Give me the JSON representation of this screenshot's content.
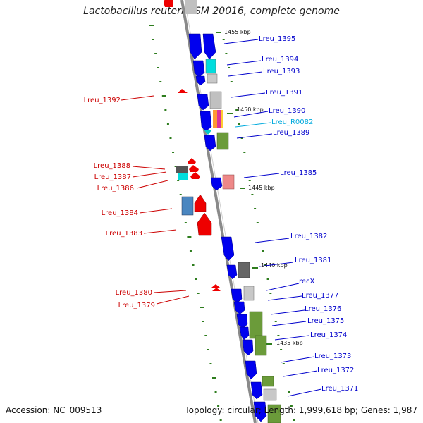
{
  "title": "Lactobacillus reuteri DSM 20016, complete genome",
  "footer": {
    "accession": "Accession: NC_009513",
    "summary": "Topology: circular; Length: 1,999,618 bp; Genes: 1,987"
  },
  "colors": {
    "forward_cds": "#0000ee",
    "reverse_cds": "#ee0000",
    "backbone": "#8a8a8a",
    "tick": "#2e7d1e",
    "right_label": "#0000cc",
    "left_label": "#cc0000",
    "rna_label": "#00aadd"
  },
  "scale_labels": [
    "1455 kbp",
    "1450 kbp",
    "1445 kbp",
    "1440 kbp",
    "1435 kbp"
  ],
  "right_labels": [
    "Lreu_1395",
    "Lreu_1394",
    "Lreu_1393",
    "Lreu_1391",
    "Lreu_1390",
    "Lreu_R0082",
    "Lreu_1389",
    "Lreu_1385",
    "Lreu_1382",
    "Lreu_1381",
    "recX",
    "Lreu_1377",
    "Lreu_1376",
    "Lreu_1375",
    "Lreu_1374",
    "Lreu_1373",
    "Lreu_1372",
    "Lreu_1371"
  ],
  "left_labels": [
    "Lreu_1392",
    "Lreu_1388",
    "Lreu_1387",
    "Lreu_1386",
    "Lreu_1384",
    "Lreu_1383",
    "Lreu_1380",
    "Lreu_1379"
  ]
}
